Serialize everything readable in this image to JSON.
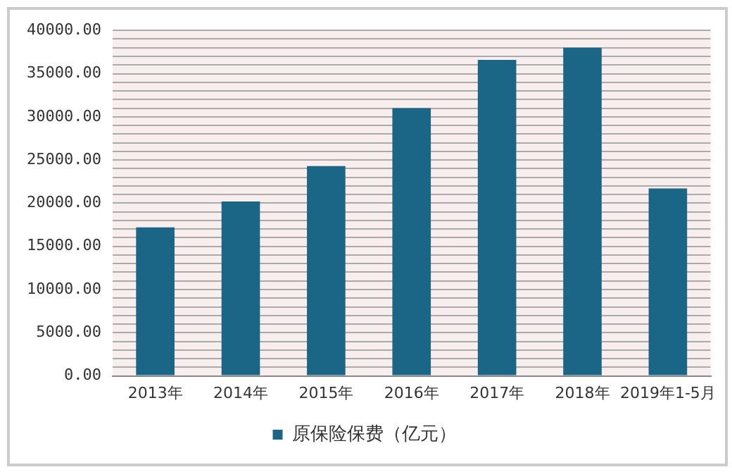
{
  "chart_data": {
    "type": "bar",
    "categories": [
      "2013年",
      "2014年",
      "2015年",
      "2016年",
      "2017年",
      "2018年",
      "2019年1-5月"
    ],
    "series": [
      {
        "name": "原保险保费（亿元）",
        "color": "#1b6686",
        "values": [
          17200,
          20200,
          24300,
          31000,
          36600,
          38000,
          21700
        ]
      }
    ],
    "ylim": [
      0,
      40000
    ],
    "yticks": [
      {
        "value": 0,
        "label": "0.00"
      },
      {
        "value": 1000,
        "label": null
      },
      {
        "value": 2000,
        "label": null
      },
      {
        "value": 3000,
        "label": null
      },
      {
        "value": 4000,
        "label": null
      },
      {
        "value": 5000,
        "label": "5000.00"
      },
      {
        "value": 6000,
        "label": null
      },
      {
        "value": 7000,
        "label": null
      },
      {
        "value": 8000,
        "label": null
      },
      {
        "value": 9000,
        "label": null
      },
      {
        "value": 10000,
        "label": "10000.00"
      },
      {
        "value": 11000,
        "label": null
      },
      {
        "value": 12000,
        "label": null
      },
      {
        "value": 13000,
        "label": null
      },
      {
        "value": 14000,
        "label": null
      },
      {
        "value": 15000,
        "label": "15000.00"
      },
      {
        "value": 16000,
        "label": null
      },
      {
        "value": 17000,
        "label": null
      },
      {
        "value": 18000,
        "label": null
      },
      {
        "value": 19000,
        "label": null
      },
      {
        "value": 20000,
        "label": "20000.00"
      },
      {
        "value": 21000,
        "label": null
      },
      {
        "value": 22000,
        "label": null
      },
      {
        "value": 23000,
        "label": null
      },
      {
        "value": 24000,
        "label": null
      },
      {
        "value": 25000,
        "label": "25000.00"
      },
      {
        "value": 26000,
        "label": null
      },
      {
        "value": 27000,
        "label": null
      },
      {
        "value": 28000,
        "label": null
      },
      {
        "value": 29000,
        "label": null
      },
      {
        "value": 30000,
        "label": "30000.00"
      },
      {
        "value": 31000,
        "label": null
      },
      {
        "value": 32000,
        "label": null
      },
      {
        "value": 33000,
        "label": null
      },
      {
        "value": 34000,
        "label": null
      },
      {
        "value": 35000,
        "label": "35000.00"
      },
      {
        "value": 36000,
        "label": null
      },
      {
        "value": 37000,
        "label": null
      },
      {
        "value": 38000,
        "label": null
      },
      {
        "value": 39000,
        "label": null
      },
      {
        "value": 40000,
        "label": "40000.00"
      }
    ],
    "grid": "y",
    "legend": "bottom"
  }
}
